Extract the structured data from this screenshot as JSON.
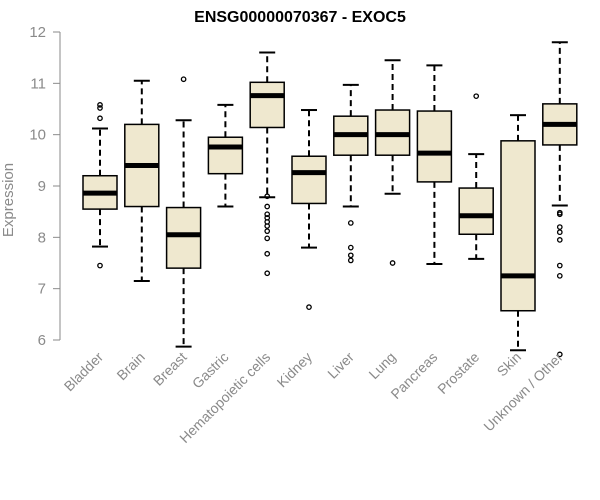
{
  "chart_data": {
    "type": "box",
    "title": "ENSG00000070367 - EXOC5",
    "xlabel": "",
    "ylabel": "Expression",
    "ylim": [
      5.7,
      12.3
    ],
    "yticks": [
      6,
      7,
      8,
      9,
      10,
      11,
      12
    ],
    "grid": false,
    "categories": [
      "Bladder",
      "Brain",
      "Breast",
      "Gastric",
      "Hematopoietic cells",
      "Kidney",
      "Liver",
      "Lung",
      "Pancreas",
      "Prostate",
      "Skin",
      "Unknown / Other"
    ],
    "series": [
      {
        "boxes": [
          {
            "whisker_low": 7.82,
            "q1": 8.55,
            "median": 8.86,
            "q3": 9.2,
            "whisker_high": 10.12,
            "outliers": [
              10.58,
              10.52,
              10.32,
              7.45
            ]
          },
          {
            "whisker_low": 7.15,
            "q1": 8.6,
            "median": 9.4,
            "q3": 10.2,
            "whisker_high": 11.05,
            "outliers": []
          },
          {
            "whisker_low": 5.87,
            "q1": 7.4,
            "median": 8.05,
            "q3": 8.58,
            "whisker_high": 10.28,
            "outliers": [
              11.08
            ]
          },
          {
            "whisker_low": 8.6,
            "q1": 9.24,
            "median": 9.76,
            "q3": 9.95,
            "whisker_high": 10.58,
            "outliers": []
          },
          {
            "whisker_low": 8.78,
            "q1": 10.14,
            "median": 10.76,
            "q3": 11.02,
            "whisker_high": 11.6,
            "outliers": [
              8.8,
              8.6,
              8.45,
              8.38,
              8.3,
              8.22,
              8.12,
              7.98,
              7.68,
              7.3
            ]
          },
          {
            "whisker_low": 7.8,
            "q1": 8.66,
            "median": 9.26,
            "q3": 9.58,
            "whisker_high": 10.48,
            "outliers": [
              6.64
            ]
          },
          {
            "whisker_low": 8.6,
            "q1": 9.6,
            "median": 10.0,
            "q3": 10.36,
            "whisker_high": 10.97,
            "outliers": [
              8.28,
              7.8,
              7.65,
              7.55
            ]
          },
          {
            "whisker_low": 8.85,
            "q1": 9.6,
            "median": 10.0,
            "q3": 10.48,
            "whisker_high": 11.45,
            "outliers": [
              7.5
            ]
          },
          {
            "whisker_low": 7.48,
            "q1": 9.08,
            "median": 9.64,
            "q3": 10.46,
            "whisker_high": 11.35,
            "outliers": []
          },
          {
            "whisker_low": 7.58,
            "q1": 8.06,
            "median": 8.42,
            "q3": 8.96,
            "whisker_high": 9.62,
            "outliers": [
              10.75
            ]
          },
          {
            "whisker_low": 5.8,
            "q1": 6.57,
            "median": 7.25,
            "q3": 9.88,
            "whisker_high": 10.38,
            "outliers": []
          },
          {
            "whisker_low": 8.62,
            "q1": 9.8,
            "median": 10.2,
            "q3": 10.6,
            "whisker_high": 11.8,
            "outliers": [
              8.48,
              8.45,
              8.2,
              8.1,
              7.95,
              7.45,
              7.25,
              5.72
            ]
          }
        ]
      }
    ],
    "box_fill": "#efe8cf",
    "box_stroke": "#000000",
    "median_color": "#000000",
    "axis_color": "#8a8a8a"
  }
}
